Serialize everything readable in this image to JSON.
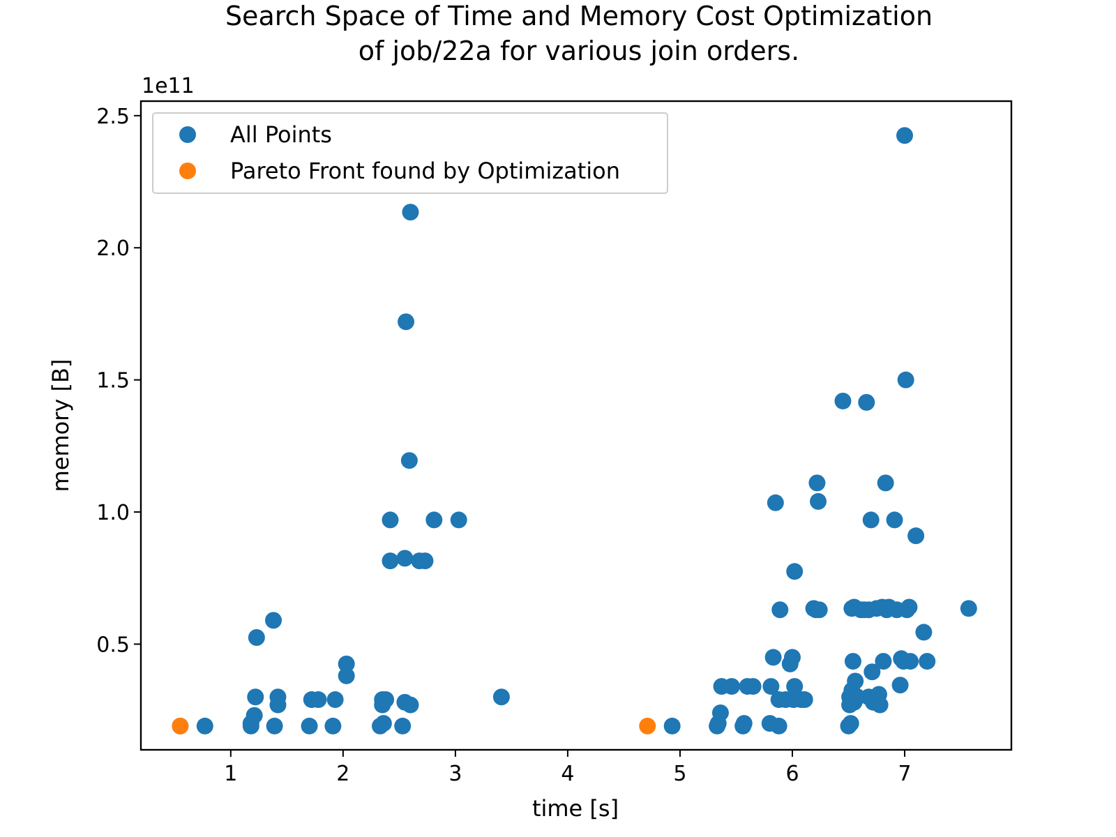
{
  "chart_data": {
    "type": "scatter",
    "title": [
      "Search Space of Time and Memory Cost Optimization",
      "of job/22a for various join orders."
    ],
    "xlabel": "time [s]",
    "ylabel": "memory [B]",
    "y_offset_label": "1e11",
    "xlim": [
      0.2,
      7.95
    ],
    "ylim": [
      10000000000.0,
      255500000000.0
    ],
    "x_ticks": [
      1,
      2,
      3,
      4,
      5,
      6,
      7
    ],
    "x_tick_labels": [
      "1",
      "2",
      "3",
      "4",
      "5",
      "6",
      "7"
    ],
    "y_ticks": [
      50000000000.0,
      100000000000.0,
      150000000000.0,
      200000000000.0,
      250000000000.0
    ],
    "y_tick_labels": [
      "0.5",
      "1.0",
      "1.5",
      "2.0",
      "2.5"
    ],
    "grid": false,
    "legend_position": "top-left",
    "series": [
      {
        "name": "All Points",
        "color": "#1f77b4",
        "points": [
          [
            0.55,
            19000000000.0
          ],
          [
            0.77,
            19000000000.0
          ],
          [
            1.18,
            19000000000.0
          ],
          [
            1.18,
            20000000000.0
          ],
          [
            1.21,
            23000000000.0
          ],
          [
            1.22,
            30000000000.0
          ],
          [
            1.23,
            52500000000.0
          ],
          [
            1.38,
            59000000000.0
          ],
          [
            1.39,
            19000000000.0
          ],
          [
            1.42,
            30000000000.0
          ],
          [
            1.42,
            27000000000.0
          ],
          [
            1.7,
            19000000000.0
          ],
          [
            1.72,
            29000000000.0
          ],
          [
            1.78,
            29000000000.0
          ],
          [
            1.91,
            19000000000.0
          ],
          [
            1.93,
            29000000000.0
          ],
          [
            2.03,
            42500000000.0
          ],
          [
            2.03,
            38000000000.0
          ],
          [
            2.33,
            19000000000.0
          ],
          [
            2.35,
            29000000000.0
          ],
          [
            2.35,
            27000000000.0
          ],
          [
            2.36,
            20000000000.0
          ],
          [
            2.38,
            29000000000.0
          ],
          [
            2.42,
            97000000000.0
          ],
          [
            2.42,
            81500000000.0
          ],
          [
            2.53,
            19000000000.0
          ],
          [
            2.55,
            82500000000.0
          ],
          [
            2.55,
            28000000000.0
          ],
          [
            2.56,
            172000000000.0
          ],
          [
            2.59,
            119500000000.0
          ],
          [
            2.6,
            213500000000.0
          ],
          [
            2.6,
            27000000000.0
          ],
          [
            2.68,
            81500000000.0
          ],
          [
            2.73,
            81500000000.0
          ],
          [
            2.81,
            97000000000.0
          ],
          [
            3.03,
            97000000000.0
          ],
          [
            3.41,
            30000000000.0
          ],
          [
            4.93,
            19000000000.0
          ],
          [
            5.33,
            19000000000.0
          ],
          [
            5.34,
            20000000000.0
          ],
          [
            5.36,
            24000000000.0
          ],
          [
            5.37,
            34000000000.0
          ],
          [
            5.46,
            34000000000.0
          ],
          [
            5.56,
            19000000000.0
          ],
          [
            5.57,
            20000000000.0
          ],
          [
            5.6,
            34000000000.0
          ],
          [
            5.65,
            34000000000.0
          ],
          [
            5.8,
            20000000000.0
          ],
          [
            5.81,
            34000000000.0
          ],
          [
            5.83,
            45000000000.0
          ],
          [
            5.85,
            103500000000.0
          ],
          [
            5.88,
            29000000000.0
          ],
          [
            5.88,
            19000000000.0
          ],
          [
            5.89,
            63000000000.0
          ],
          [
            5.94,
            29000000000.0
          ],
          [
            5.98,
            42500000000.0
          ],
          [
            6.0,
            45000000000.0
          ],
          [
            6.01,
            29000000000.0
          ],
          [
            6.02,
            77500000000.0
          ],
          [
            6.02,
            34000000000.0
          ],
          [
            6.08,
            29000000000.0
          ],
          [
            6.11,
            29000000000.0
          ],
          [
            6.19,
            63500000000.0
          ],
          [
            6.21,
            63000000000.0
          ],
          [
            6.22,
            111000000000.0
          ],
          [
            6.23,
            104000000000.0
          ],
          [
            6.24,
            63000000000.0
          ],
          [
            6.45,
            142000000000.0
          ],
          [
            6.5,
            19000000000.0
          ],
          [
            6.51,
            27000000000.0
          ],
          [
            6.51,
            30000000000.0
          ],
          [
            6.52,
            20000000000.0
          ],
          [
            6.53,
            32500000000.0
          ],
          [
            6.53,
            63500000000.0
          ],
          [
            6.54,
            43500000000.0
          ],
          [
            6.55,
            28000000000.0
          ],
          [
            6.55,
            64000000000.0
          ],
          [
            6.56,
            36000000000.0
          ],
          [
            6.58,
            30000000000.0
          ],
          [
            6.61,
            63000000000.0
          ],
          [
            6.64,
            63000000000.0
          ],
          [
            6.66,
            141500000000.0
          ],
          [
            6.68,
            63000000000.0
          ],
          [
            6.68,
            30000000000.0
          ],
          [
            6.7,
            97000000000.0
          ],
          [
            6.71,
            39500000000.0
          ],
          [
            6.72,
            28000000000.0
          ],
          [
            6.75,
            63500000000.0
          ],
          [
            6.77,
            31000000000.0
          ],
          [
            6.78,
            27000000000.0
          ],
          [
            6.8,
            64000000000.0
          ],
          [
            6.81,
            43500000000.0
          ],
          [
            6.83,
            111000000000.0
          ],
          [
            6.84,
            63000000000.0
          ],
          [
            6.86,
            64000000000.0
          ],
          [
            6.91,
            97000000000.0
          ],
          [
            6.93,
            63000000000.0
          ],
          [
            6.96,
            34500000000.0
          ],
          [
            6.97,
            44500000000.0
          ],
          [
            6.99,
            43500000000.0
          ],
          [
            7.0,
            242500000000.0
          ],
          [
            7.01,
            150000000000.0
          ],
          [
            7.02,
            63000000000.0
          ],
          [
            7.04,
            64000000000.0
          ],
          [
            7.05,
            43500000000.0
          ],
          [
            7.1,
            91000000000.0
          ],
          [
            7.17,
            54500000000.0
          ],
          [
            7.2,
            43500000000.0
          ],
          [
            7.57,
            63500000000.0
          ]
        ]
      },
      {
        "name": "Pareto Front found by Optimization",
        "color": "#ff7f0e",
        "points": [
          [
            0.55,
            19000000000.0
          ],
          [
            4.71,
            19000000000.0
          ]
        ]
      }
    ]
  }
}
